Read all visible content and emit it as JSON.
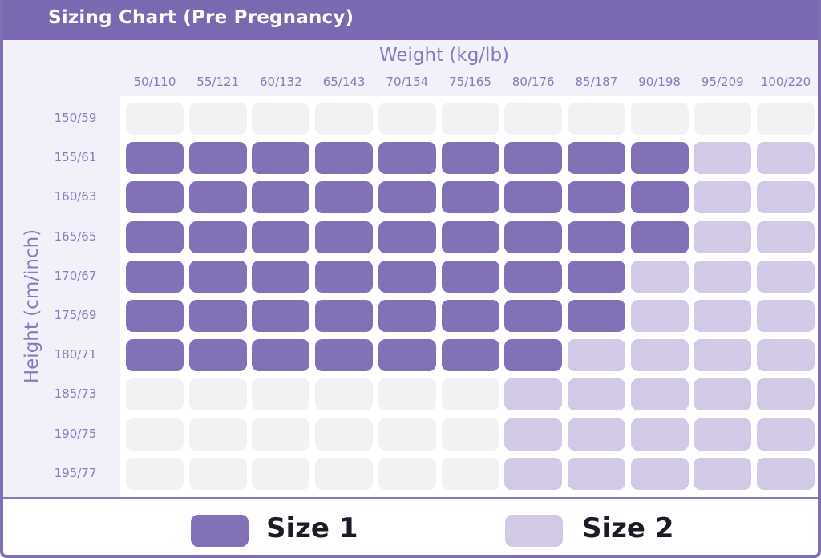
{
  "chart_data": {
    "type": "table",
    "title": "Sizing Chart (Pre Pregnancy)",
    "xlabel": "Weight (kg/lb)",
    "ylabel": "Height (cm/inch)",
    "columns": [
      "50/110",
      "55/121",
      "60/132",
      "65/143",
      "70/154",
      "75/165",
      "80/176",
      "85/187",
      "90/198",
      "95/209",
      "100/220"
    ],
    "rows": [
      "150/59",
      "155/61",
      "160/63",
      "165/65",
      "170/67",
      "175/69",
      "180/71",
      "185/73",
      "190/75",
      "195/77"
    ],
    "cells": [
      [
        0,
        0,
        0,
        0,
        0,
        0,
        0,
        0,
        0,
        0,
        0
      ],
      [
        1,
        1,
        1,
        1,
        1,
        1,
        1,
        1,
        1,
        2,
        2
      ],
      [
        1,
        1,
        1,
        1,
        1,
        1,
        1,
        1,
        1,
        2,
        2
      ],
      [
        1,
        1,
        1,
        1,
        1,
        1,
        1,
        1,
        1,
        2,
        2
      ],
      [
        1,
        1,
        1,
        1,
        1,
        1,
        1,
        1,
        2,
        2,
        2
      ],
      [
        1,
        1,
        1,
        1,
        1,
        1,
        1,
        1,
        2,
        2,
        2
      ],
      [
        1,
        1,
        1,
        1,
        1,
        1,
        1,
        2,
        2,
        2,
        2
      ],
      [
        0,
        0,
        0,
        0,
        0,
        0,
        2,
        2,
        2,
        2,
        2
      ],
      [
        0,
        0,
        0,
        0,
        0,
        0,
        2,
        2,
        2,
        2,
        2
      ],
      [
        0,
        0,
        0,
        0,
        0,
        0,
        2,
        2,
        2,
        2,
        2
      ]
    ],
    "legend": [
      {
        "label": "Size 1",
        "value": 1,
        "color": "#8371b8"
      },
      {
        "label": "Size 2",
        "value": 2,
        "color": "#d1c9e6"
      }
    ],
    "empty_color": "#f2f2f4"
  }
}
